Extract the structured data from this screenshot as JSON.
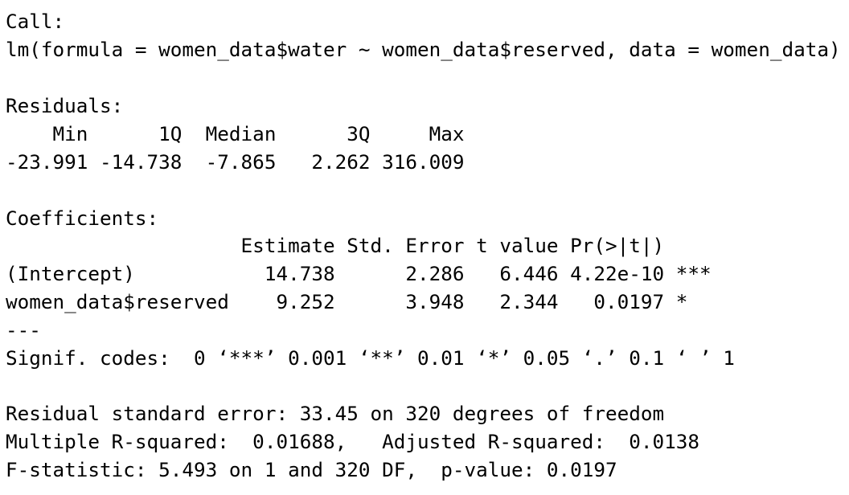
{
  "console": {
    "call": {
      "header": "Call:",
      "formula": "lm(formula = women_data$water ~ women_data$reserved, data = women_data)"
    },
    "residuals": {
      "header": "Residuals:",
      "labels_row": "    Min      1Q  Median      3Q     Max ",
      "values_row": "-23.991 -14.738  -7.865   2.262 316.009 "
    },
    "coefficients": {
      "header": "Coefficients:",
      "columns_row": "                    Estimate Std. Error t value Pr(>|t|)    ",
      "rows": [
        "(Intercept)           14.738      2.286   6.446 4.22e-10 ***",
        "women_data$reserved    9.252      3.948   2.344   0.0197 *  "
      ],
      "separator": "---",
      "signif_codes": "Signif. codes:  0 ‘***’ 0.001 ‘**’ 0.01 ‘*’ 0.05 ‘.’ 0.1 ‘ ’ 1"
    },
    "summary": {
      "residual_se": "Residual standard error: 33.45 on 320 degrees of freedom",
      "r_squared": "Multiple R-squared:  0.01688,\tAdjusted R-squared:  0.0138 ",
      "f_statistic": "F-statistic: 5.493 on 1 and 320 DF,  p-value: 0.0197"
    }
  }
}
